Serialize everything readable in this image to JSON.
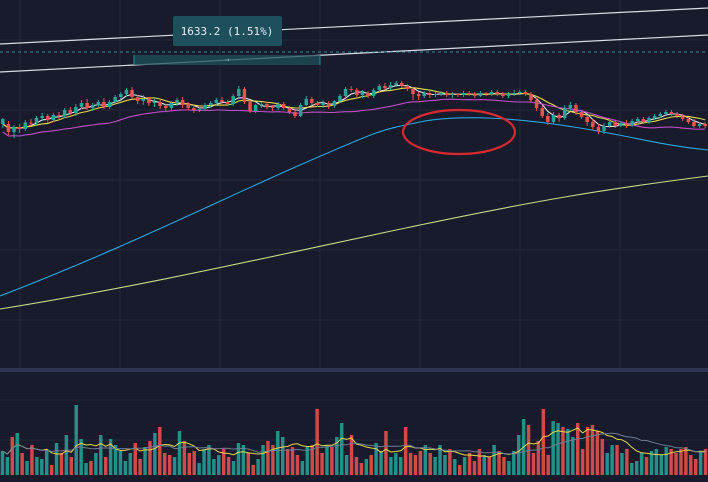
{
  "measure_label": "1633.2 (1.51%)",
  "colors": {
    "background": "#181b2b",
    "grid": "#232838",
    "up": "#26a69a",
    "down": "#ef5350",
    "ma_fast": "#e8e8e8",
    "ma_yellow": "#e5d94a",
    "ma_magenta": "#c04fc8",
    "ma_blue": "#2aa7e0",
    "ma_long": "#c5dd8a",
    "measure_box": "#1d4f5c",
    "circle": "#d62b30"
  },
  "chart_data": {
    "type": "candlestick",
    "price_axis_labels": "none visible",
    "grid": true,
    "candles": [
      [
        198,
        208,
        216,
        196,
        "up"
      ],
      [
        208,
        224,
        230,
        202,
        "down"
      ],
      [
        224,
        214,
        236,
        210,
        "up"
      ],
      [
        214,
        218,
        226,
        208,
        "down"
      ],
      [
        218,
        205,
        222,
        200,
        "up"
      ],
      [
        205,
        206,
        212,
        198,
        "down"
      ],
      [
        206,
        196,
        210,
        192,
        "up"
      ],
      [
        196,
        192,
        200,
        186,
        "up"
      ],
      [
        192,
        200,
        206,
        188,
        "down"
      ],
      [
        200,
        190,
        204,
        186,
        "up"
      ],
      [
        190,
        192,
        198,
        184,
        "down"
      ],
      [
        192,
        180,
        196,
        176,
        "up"
      ],
      [
        180,
        186,
        190,
        174,
        "down"
      ],
      [
        186,
        174,
        192,
        168,
        "up"
      ],
      [
        174,
        166,
        178,
        160,
        "up"
      ],
      [
        166,
        176,
        180,
        158,
        "down"
      ],
      [
        176,
        170,
        182,
        166,
        "up"
      ],
      [
        170,
        164,
        174,
        160,
        "up"
      ],
      [
        164,
        174,
        178,
        156,
        "down"
      ],
      [
        174,
        164,
        178,
        160,
        "up"
      ],
      [
        164,
        154,
        170,
        150,
        "up"
      ],
      [
        154,
        148,
        158,
        144,
        "up"
      ],
      [
        148,
        140,
        152,
        136,
        "up"
      ],
      [
        140,
        154,
        158,
        134,
        "down"
      ],
      [
        154,
        162,
        168,
        150,
        "down"
      ],
      [
        162,
        158,
        170,
        150,
        "up"
      ],
      [
        158,
        166,
        172,
        154,
        "down"
      ],
      [
        166,
        164,
        174,
        158,
        "up"
      ],
      [
        164,
        172,
        178,
        160,
        "down"
      ],
      [
        172,
        176,
        184,
        168,
        "down"
      ],
      [
        176,
        166,
        180,
        162,
        "up"
      ],
      [
        166,
        160,
        172,
        156,
        "up"
      ],
      [
        160,
        168,
        176,
        154,
        "down"
      ],
      [
        168,
        176,
        180,
        164,
        "down"
      ],
      [
        176,
        180,
        186,
        170,
        "down"
      ],
      [
        180,
        178,
        184,
        174,
        "up"
      ],
      [
        178,
        170,
        182,
        166,
        "up"
      ],
      [
        170,
        166,
        176,
        162,
        "up"
      ],
      [
        166,
        160,
        170,
        156,
        "up"
      ],
      [
        160,
        164,
        168,
        154,
        "down"
      ],
      [
        164,
        168,
        172,
        160,
        "down"
      ],
      [
        168,
        152,
        172,
        148,
        "up"
      ],
      [
        152,
        138,
        156,
        132,
        "up"
      ],
      [
        138,
        164,
        168,
        134,
        "down"
      ],
      [
        164,
        182,
        186,
        160,
        "down"
      ],
      [
        182,
        170,
        186,
        168,
        "up"
      ],
      [
        170,
        168,
        176,
        164,
        "up"
      ],
      [
        168,
        174,
        178,
        164,
        "down"
      ],
      [
        174,
        176,
        182,
        170,
        "down"
      ],
      [
        176,
        168,
        180,
        164,
        "up"
      ],
      [
        168,
        176,
        180,
        164,
        "down"
      ],
      [
        176,
        184,
        188,
        172,
        "down"
      ],
      [
        184,
        192,
        196,
        178,
        "down"
      ],
      [
        192,
        170,
        194,
        166,
        "up"
      ],
      [
        170,
        158,
        172,
        152,
        "up"
      ],
      [
        158,
        166,
        170,
        154,
        "down"
      ],
      [
        166,
        170,
        174,
        162,
        "down"
      ],
      [
        170,
        166,
        176,
        160,
        "up"
      ],
      [
        166,
        172,
        178,
        162,
        "down"
      ],
      [
        172,
        162,
        176,
        160,
        "up"
      ],
      [
        162,
        152,
        166,
        148,
        "up"
      ],
      [
        152,
        138,
        156,
        134,
        "up"
      ],
      [
        138,
        140,
        144,
        132,
        "down"
      ],
      [
        140,
        150,
        154,
        136,
        "down"
      ],
      [
        150,
        146,
        156,
        140,
        "up"
      ],
      [
        146,
        152,
        156,
        142,
        "down"
      ],
      [
        152,
        140,
        156,
        136,
        "up"
      ],
      [
        140,
        132,
        144,
        128,
        "up"
      ],
      [
        132,
        136,
        140,
        126,
        "down"
      ],
      [
        136,
        130,
        140,
        124,
        "up"
      ],
      [
        130,
        126,
        134,
        122,
        "up"
      ],
      [
        126,
        132,
        136,
        122,
        "down"
      ],
      [
        132,
        138,
        142,
        128,
        "down"
      ],
      [
        138,
        148,
        160,
        134,
        "down"
      ],
      [
        148,
        152,
        160,
        144,
        "down"
      ],
      [
        152,
        146,
        156,
        142,
        "up"
      ],
      [
        146,
        150,
        156,
        142,
        "down"
      ],
      [
        150,
        148,
        154,
        144,
        "up"
      ],
      [
        148,
        146,
        152,
        142,
        "up"
      ],
      [
        146,
        150,
        154,
        142,
        "down"
      ],
      [
        150,
        148,
        156,
        144,
        "up"
      ],
      [
        148,
        150,
        154,
        146,
        "down"
      ],
      [
        150,
        146,
        154,
        142,
        "up"
      ],
      [
        146,
        148,
        152,
        142,
        "down"
      ],
      [
        148,
        152,
        156,
        144,
        "down"
      ],
      [
        152,
        146,
        154,
        142,
        "up"
      ],
      [
        146,
        148,
        152,
        144,
        "down"
      ],
      [
        148,
        144,
        152,
        140,
        "up"
      ],
      [
        144,
        148,
        152,
        140,
        "down"
      ],
      [
        148,
        152,
        156,
        144,
        "down"
      ],
      [
        152,
        148,
        156,
        144,
        "up"
      ],
      [
        148,
        146,
        152,
        140,
        "up"
      ],
      [
        146,
        144,
        150,
        140,
        "up"
      ],
      [
        144,
        148,
        152,
        140,
        "down"
      ],
      [
        148,
        160,
        164,
        144,
        "down"
      ],
      [
        160,
        176,
        182,
        156,
        "down"
      ],
      [
        176,
        192,
        196,
        172,
        "down"
      ],
      [
        192,
        204,
        210,
        186,
        "down"
      ],
      [
        204,
        190,
        208,
        184,
        "up"
      ],
      [
        190,
        196,
        204,
        186,
        "down"
      ],
      [
        196,
        176,
        200,
        170,
        "up"
      ],
      [
        176,
        170,
        182,
        164,
        "up"
      ],
      [
        170,
        184,
        190,
        166,
        "down"
      ],
      [
        184,
        194,
        198,
        180,
        "down"
      ],
      [
        194,
        204,
        212,
        190,
        "down"
      ],
      [
        204,
        214,
        220,
        198,
        "down"
      ],
      [
        214,
        222,
        228,
        208,
        "down"
      ],
      [
        222,
        212,
        228,
        206,
        "up"
      ],
      [
        212,
        204,
        216,
        198,
        "up"
      ],
      [
        204,
        212,
        216,
        200,
        "down"
      ],
      [
        212,
        206,
        214,
        202,
        "up"
      ],
      [
        206,
        210,
        216,
        200,
        "down"
      ],
      [
        210,
        202,
        214,
        198,
        "up"
      ],
      [
        202,
        198,
        206,
        194,
        "up"
      ],
      [
        198,
        204,
        208,
        194,
        "down"
      ],
      [
        204,
        196,
        208,
        192,
        "up"
      ],
      [
        196,
        192,
        200,
        188,
        "up"
      ],
      [
        192,
        188,
        196,
        184,
        "up"
      ],
      [
        188,
        184,
        192,
        180,
        "up"
      ],
      [
        184,
        188,
        192,
        180,
        "down"
      ],
      [
        188,
        192,
        196,
        184,
        "down"
      ],
      [
        192,
        198,
        202,
        188,
        "down"
      ],
      [
        198,
        204,
        208,
        194,
        "down"
      ],
      [
        204,
        212,
        216,
        198,
        "down"
      ],
      [
        212,
        208,
        216,
        204,
        "up"
      ],
      [
        208,
        212,
        216,
        204,
        "down"
      ]
    ],
    "volumes": [
      24,
      18,
      38,
      42,
      22,
      14,
      30,
      18,
      16,
      26,
      10,
      32,
      22,
      40,
      18,
      70,
      36,
      12,
      14,
      22,
      40,
      18,
      36,
      30,
      24,
      14,
      22,
      32,
      16,
      28,
      34,
      42,
      48,
      22,
      20,
      18,
      44,
      34,
      22,
      24,
      12,
      26,
      30,
      16,
      20,
      26,
      18,
      14,
      32,
      30,
      22,
      10,
      16,
      30,
      34,
      30,
      44,
      38,
      26,
      28,
      20,
      14,
      28,
      30,
      66,
      22,
      30,
      28,
      38,
      52,
      20,
      40,
      18,
      12,
      16,
      20,
      32,
      24,
      44,
      18,
      22,
      18,
      48,
      22,
      20,
      24,
      30,
      22,
      18,
      30,
      20,
      26,
      16,
      10,
      18,
      22,
      14,
      26,
      20,
      18,
      30,
      24,
      18,
      14,
      24,
      40,
      56,
      50,
      22,
      34,
      66,
      20,
      54,
      52,
      48,
      46,
      38,
      52,
      26,
      48,
      50,
      44,
      36,
      22,
      30,
      30,
      22,
      26,
      12,
      14,
      22,
      18,
      24,
      26,
      20,
      28,
      26,
      22,
      26,
      28,
      20,
      16,
      24,
      26
    ]
  }
}
